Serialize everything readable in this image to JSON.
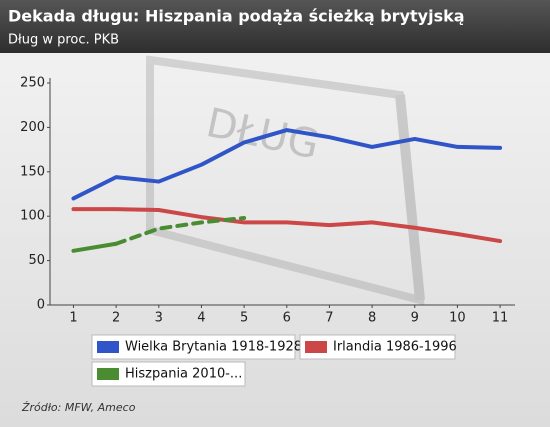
{
  "chart_data": {
    "type": "line",
    "title": "Dekada długu: Hiszpania podąża ścieżką brytyjską",
    "subtitle": "Dług w proc. PKB",
    "watermark": "DŁUG",
    "source": "Źródło: MFW, Ameco",
    "x": [
      1,
      2,
      3,
      4,
      5,
      6,
      7,
      8,
      9,
      10,
      11
    ],
    "xlim": [
      0.45,
      11.35
    ],
    "xticks": [
      1,
      2,
      3,
      4,
      5,
      6,
      7,
      8,
      9,
      10,
      11
    ],
    "ylim": [
      0,
      250
    ],
    "yticks": [
      0,
      50,
      100,
      150,
      200,
      250
    ],
    "grid": false,
    "series": [
      {
        "name": "Wielka Brytania 1918-1928",
        "color": "#2f55c8",
        "values": [
          120,
          144,
          139,
          158,
          183,
          197,
          189,
          178,
          187,
          178,
          177
        ]
      },
      {
        "name": "Irlandia 1986-1996",
        "color": "#cc4848",
        "values": [
          108,
          108,
          107,
          99,
          93,
          93,
          90,
          93,
          87,
          80,
          72
        ]
      },
      {
        "name": "Hiszpania 2010-...",
        "color": "#4a8c32",
        "values": [
          61,
          69,
          86,
          93,
          98,
          null,
          null,
          null,
          null,
          null,
          null
        ],
        "dashed_from_x": 2
      }
    ]
  }
}
